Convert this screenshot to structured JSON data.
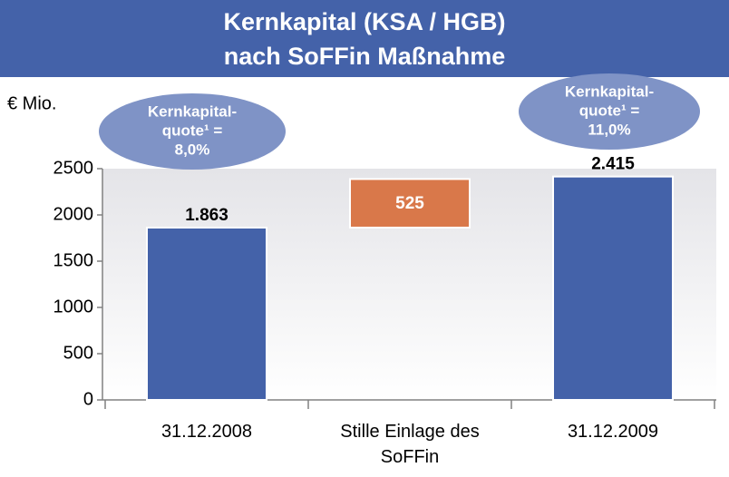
{
  "chart_data": {
    "type": "waterfall",
    "title": [
      "Kernkapital (KSA / HGB)",
      "nach SoFFin Maßnahme"
    ],
    "unit_label": "€ Mio.",
    "annotations": [
      {
        "lines": [
          "Kernkapital-",
          "quote¹ =",
          "8,0%"
        ]
      },
      {
        "lines": [
          "Kernkapital-",
          "quote¹ =",
          "11,0%"
        ]
      }
    ],
    "categories": [
      "31.12.2008",
      "Stille Einlage des SoFFin",
      "31.12.2009"
    ],
    "values": [
      1863,
      525,
      2415
    ],
    "value_labels": [
      "1.863",
      "525",
      "2.415"
    ],
    "measures": [
      "absolute",
      "relative",
      "total"
    ],
    "colors": [
      "#4462a9",
      "#d9784a",
      "#4462a9"
    ],
    "ylim": [
      0,
      2500
    ],
    "yticks": [
      0,
      500,
      1000,
      1500,
      2000,
      2500
    ]
  }
}
